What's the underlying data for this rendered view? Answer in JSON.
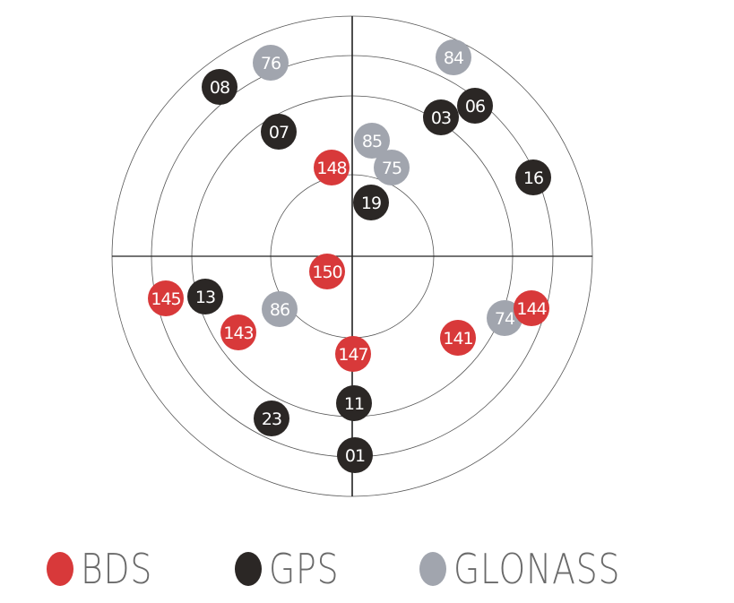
{
  "colors": {
    "BDS": "#d8393a",
    "GPS": "#2b2725",
    "GLONASS": "#a1a5ae"
  },
  "legend": [
    {
      "label": "BDS",
      "system": "BDS"
    },
    {
      "label": "GPS",
      "system": "GPS"
    },
    {
      "label": "GLONASS",
      "system": "GLONASS"
    }
  ],
  "satellites": [
    {
      "id": "76",
      "system": "GLONASS"
    },
    {
      "id": "84",
      "system": "GLONASS"
    },
    {
      "id": "08",
      "system": "GPS"
    },
    {
      "id": "03",
      "system": "GPS"
    },
    {
      "id": "06",
      "system": "GPS"
    },
    {
      "id": "07",
      "system": "GPS"
    },
    {
      "id": "85",
      "system": "GLONASS"
    },
    {
      "id": "75",
      "system": "GLONASS"
    },
    {
      "id": "148",
      "system": "BDS"
    },
    {
      "id": "16",
      "system": "GPS"
    },
    {
      "id": "19",
      "system": "GPS"
    },
    {
      "id": "150",
      "system": "BDS"
    },
    {
      "id": "145",
      "system": "BDS"
    },
    {
      "id": "13",
      "system": "GPS"
    },
    {
      "id": "86",
      "system": "GLONASS"
    },
    {
      "id": "143",
      "system": "BDS"
    },
    {
      "id": "147",
      "system": "BDS"
    },
    {
      "id": "74",
      "system": "GLONASS"
    },
    {
      "id": "144",
      "system": "BDS"
    },
    {
      "id": "141",
      "system": "BDS"
    },
    {
      "id": "11",
      "system": "GPS"
    },
    {
      "id": "23",
      "system": "GPS"
    },
    {
      "id": "01",
      "system": "GPS"
    }
  ]
}
